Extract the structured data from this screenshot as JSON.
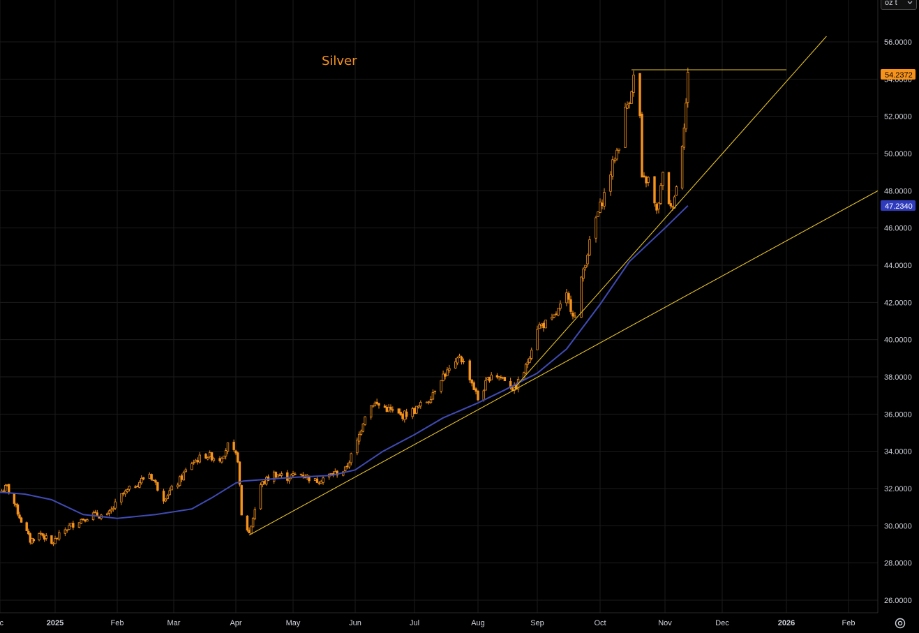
{
  "unit_selector": {
    "value": "oz t",
    "icon": "chevron-down-icon"
  },
  "settings": {
    "icon": "gear-icon"
  },
  "colors": {
    "background": "#000000",
    "candle": "#f7931a",
    "moving_average": "#3f4bb5",
    "trendline": "#e6c229",
    "last_price_tag": "#f7931a",
    "ma_tag": "#2f3bbd"
  },
  "chart_data": {
    "type": "candlestick",
    "title": "Silver",
    "ylim": [
      25,
      57
    ],
    "y_ticks": [
      "26.0000",
      "28.0000",
      "30.0000",
      "32.0000",
      "34.0000",
      "36.0000",
      "38.0000",
      "40.0000",
      "42.0000",
      "44.0000",
      "46.0000",
      "48.0000",
      "50.0000",
      "52.0000",
      "54.0000",
      "56.0000"
    ],
    "x_ticks": [
      "Dec",
      "2025",
      "Feb",
      "Mar",
      "Apr",
      "May",
      "Jun",
      "Jul",
      "Aug",
      "Sep",
      "Oct",
      "Nov",
      "Dec",
      "2026",
      "Feb"
    ],
    "grid": true,
    "last_price": "54.2372",
    "ma_value": "47.2340",
    "price_path": [
      [
        "2024-12-01",
        31.8
      ],
      [
        "2024-12-05",
        32.1
      ],
      [
        "2024-12-09",
        31.2
      ],
      [
        "2024-12-12",
        30.5
      ],
      [
        "2024-12-18",
        29.2
      ],
      [
        "2024-12-24",
        29.6
      ],
      [
        "2024-12-30",
        29.0
      ],
      [
        "2025-01-06",
        29.8
      ],
      [
        "2025-01-13",
        30.3
      ],
      [
        "2025-01-20",
        30.6
      ],
      [
        "2025-01-27",
        30.5
      ],
      [
        "2025-02-03",
        31.6
      ],
      [
        "2025-02-10",
        32.2
      ],
      [
        "2025-02-17",
        32.8
      ],
      [
        "2025-02-24",
        31.5
      ],
      [
        "2025-03-03",
        32.3
      ],
      [
        "2025-03-10",
        33.4
      ],
      [
        "2025-03-17",
        33.8
      ],
      [
        "2025-03-24",
        33.6
      ],
      [
        "2025-03-28",
        34.3
      ],
      [
        "2025-04-02",
        33.6
      ],
      [
        "2025-04-04",
        30.5
      ],
      [
        "2025-04-08",
        29.6
      ],
      [
        "2025-04-14",
        32.2
      ],
      [
        "2025-04-21",
        32.8
      ],
      [
        "2025-04-28",
        32.6
      ],
      [
        "2025-05-05",
        32.8
      ],
      [
        "2025-05-12",
        32.4
      ],
      [
        "2025-05-19",
        32.7
      ],
      [
        "2025-05-27",
        33.0
      ],
      [
        "2025-06-02",
        34.5
      ],
      [
        "2025-06-06",
        36.0
      ],
      [
        "2025-06-10",
        36.6
      ],
      [
        "2025-06-17",
        36.3
      ],
      [
        "2025-06-24",
        35.9
      ],
      [
        "2025-07-01",
        36.2
      ],
      [
        "2025-07-08",
        36.8
      ],
      [
        "2025-07-14",
        38.0
      ],
      [
        "2025-07-21",
        38.6
      ],
      [
        "2025-07-23",
        39.2
      ],
      [
        "2025-07-28",
        38.0
      ],
      [
        "2025-08-01",
        36.8
      ],
      [
        "2025-08-08",
        38.2
      ],
      [
        "2025-08-15",
        37.9
      ],
      [
        "2025-08-20",
        37.3
      ],
      [
        "2025-08-26",
        38.5
      ],
      [
        "2025-09-01",
        40.7
      ],
      [
        "2025-09-08",
        41.0
      ],
      [
        "2025-09-15",
        42.3
      ],
      [
        "2025-09-19",
        41.2
      ],
      [
        "2025-09-23",
        43.8
      ],
      [
        "2025-09-29",
        46.5
      ],
      [
        "2025-10-03",
        47.8
      ],
      [
        "2025-10-08",
        49.8
      ],
      [
        "2025-10-10",
        50.5
      ],
      [
        "2025-10-13",
        52.3
      ],
      [
        "2025-10-15",
        53.0
      ],
      [
        "2025-10-17",
        54.1
      ],
      [
        "2025-10-20",
        52.0
      ],
      [
        "2025-10-21",
        48.5
      ],
      [
        "2025-10-24",
        48.6
      ],
      [
        "2025-10-28",
        46.8
      ],
      [
        "2025-10-31",
        48.8
      ],
      [
        "2025-11-04",
        47.0
      ],
      [
        "2025-11-07",
        48.2
      ],
      [
        "2025-11-10",
        50.6
      ],
      [
        "2025-11-12",
        52.7
      ],
      [
        "2025-11-13",
        54.2
      ]
    ],
    "moving_average": [
      [
        "2024-12-01",
        31.8
      ],
      [
        "2024-12-15",
        31.7
      ],
      [
        "2024-12-30",
        31.4
      ],
      [
        "2025-01-15",
        30.6
      ],
      [
        "2025-02-01",
        30.4
      ],
      [
        "2025-02-20",
        30.6
      ],
      [
        "2025-03-10",
        30.9
      ],
      [
        "2025-03-20",
        31.5
      ],
      [
        "2025-04-01",
        32.3
      ],
      [
        "2025-04-05",
        32.4
      ],
      [
        "2025-05-01",
        32.6
      ],
      [
        "2025-05-20",
        32.7
      ],
      [
        "2025-06-01",
        33.0
      ],
      [
        "2025-06-15",
        34.0
      ],
      [
        "2025-07-01",
        34.9
      ],
      [
        "2025-07-15",
        35.8
      ],
      [
        "2025-08-01",
        36.6
      ],
      [
        "2025-08-15",
        37.3
      ],
      [
        "2025-09-01",
        38.2
      ],
      [
        "2025-09-15",
        39.5
      ],
      [
        "2025-10-01",
        41.9
      ],
      [
        "2025-10-15",
        44.2
      ],
      [
        "2025-11-01",
        46.0
      ],
      [
        "2025-11-13",
        47.2
      ]
    ],
    "trendlines": [
      {
        "start": [
          "2025-04-08",
          29.5
        ],
        "end": [
          "2026-02-15",
          48.0
        ]
      },
      {
        "start": [
          "2025-08-20",
          37.4
        ],
        "end": [
          "2026-01-21",
          56.3
        ]
      },
      {
        "start": [
          "2025-10-16",
          54.5
        ],
        "end": [
          "2026-01-01",
          54.5
        ]
      }
    ]
  }
}
